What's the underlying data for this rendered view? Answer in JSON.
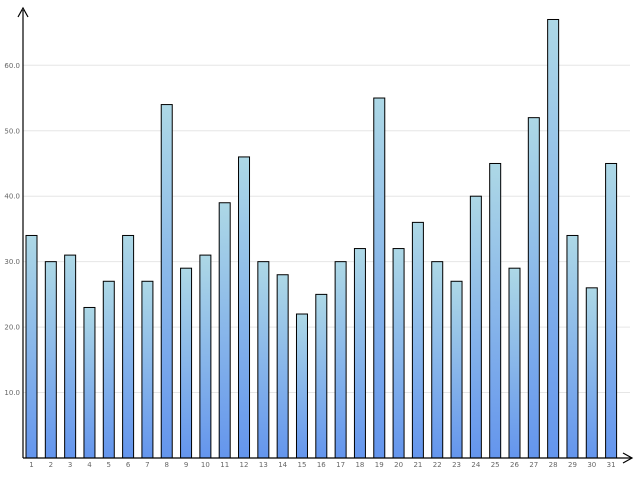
{
  "chart_data": {
    "type": "bar",
    "title": "",
    "xlabel": "",
    "ylabel": "",
    "categories": [
      "1",
      "2",
      "3",
      "4",
      "5",
      "6",
      "7",
      "8",
      "9",
      "10",
      "11",
      "12",
      "13",
      "14",
      "15",
      "16",
      "17",
      "18",
      "19",
      "20",
      "21",
      "22",
      "23",
      "24",
      "25",
      "26",
      "27",
      "28",
      "29",
      "30",
      "31"
    ],
    "values": [
      34,
      30,
      31,
      23,
      27,
      34,
      27,
      54,
      29,
      31,
      39,
      46,
      30,
      28,
      22,
      25,
      30,
      32,
      55,
      32,
      36,
      30,
      27,
      40,
      45,
      29,
      52,
      67,
      34,
      26,
      45
    ],
    "yticks": [
      "10.0",
      "20.0",
      "30.0",
      "40.0",
      "50.0",
      "60.0"
    ],
    "ylim": [
      0,
      69.5
    ],
    "grid": true,
    "legend": "none",
    "colors": {
      "bar_top": "#add8e6",
      "bar_bottom": "#6495ed",
      "grid": "#e6e6e6",
      "axis": "#000000",
      "tick_text": "#666666"
    }
  }
}
